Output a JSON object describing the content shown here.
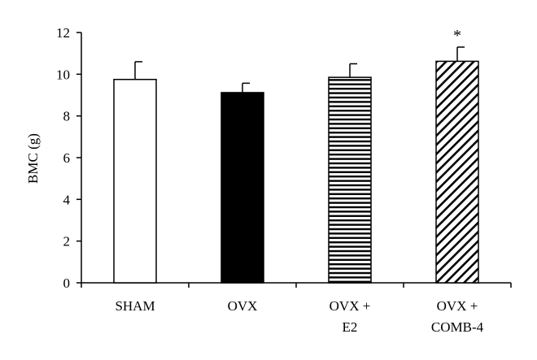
{
  "chart_data": {
    "type": "bar",
    "categories": [
      "SHAM",
      "OVX",
      "OVX + E2",
      "OVX + COMB-4"
    ],
    "category_lines": [
      [
        "SHAM"
      ],
      [
        "OVX"
      ],
      [
        "OVX +",
        "E2"
      ],
      [
        "OVX +",
        "COMB-4"
      ]
    ],
    "values": [
      9.75,
      9.12,
      9.85,
      10.62
    ],
    "errors": [
      0.85,
      0.45,
      0.65,
      0.68
    ],
    "patterns": [
      "white",
      "black",
      "horizontal-stripes",
      "diagonal-stripes"
    ],
    "annotations": [
      "",
      "",
      "",
      "*"
    ],
    "ylabel": "BMC (g)",
    "xlabel": "",
    "ylim": [
      0,
      12
    ],
    "yticks": [
      0,
      2,
      4,
      6,
      8,
      10,
      12
    ],
    "grid": false
  }
}
